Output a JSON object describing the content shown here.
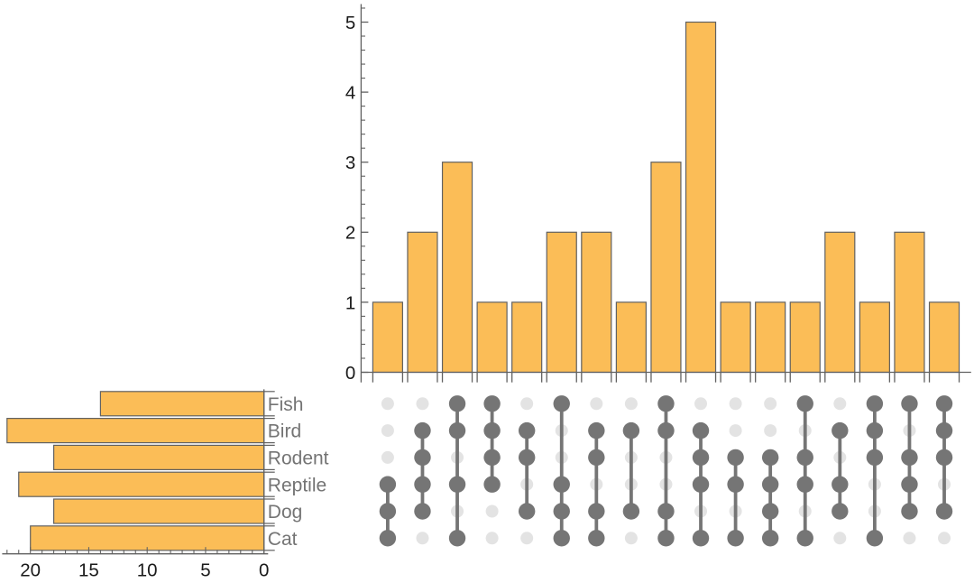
{
  "figure": {
    "kind": "upset-plot",
    "background": "#ffffff"
  },
  "colors": {
    "bar_fill": "#fbbd57",
    "bar_edge": "#616161",
    "axis_line": "#616161",
    "tick_label": "#1a1a1a",
    "set_label": "#747474",
    "dot_active": "#757575",
    "dot_inactive": "#e3e3e3",
    "connector_line": "#757575"
  },
  "chart_data": {
    "type": "upset",
    "title": "",
    "sets": [
      {
        "name": "Fish",
        "size": 14
      },
      {
        "name": "Bird",
        "size": 22
      },
      {
        "name": "Rodent",
        "size": 18
      },
      {
        "name": "Reptile",
        "size": 21
      },
      {
        "name": "Dog",
        "size": 18
      },
      {
        "name": "Cat",
        "size": 20
      }
    ],
    "set_size_axis": {
      "tick_labels": [
        "20",
        "15",
        "10",
        "5",
        "0"
      ],
      "tick_values": [
        20,
        15,
        10,
        5,
        0
      ],
      "minor_step": 1,
      "range": [
        0,
        22.4
      ],
      "direction": "right-to-left"
    },
    "intersection_axis": {
      "tick_labels": [
        "0",
        "1",
        "2",
        "3",
        "4",
        "5"
      ],
      "tick_values": [
        0,
        1,
        2,
        3,
        4,
        5
      ],
      "minor_step": 0.2,
      "range": [
        0,
        5.26
      ]
    },
    "intersections": [
      {
        "members": [
          "Reptile",
          "Dog",
          "Cat"
        ],
        "size": 1
      },
      {
        "members": [
          "Bird",
          "Rodent",
          "Reptile",
          "Dog"
        ],
        "size": 2
      },
      {
        "members": [
          "Fish",
          "Bird",
          "Reptile",
          "Cat"
        ],
        "size": 3
      },
      {
        "members": [
          "Fish",
          "Bird",
          "Rodent",
          "Reptile"
        ],
        "size": 1
      },
      {
        "members": [
          "Bird",
          "Rodent",
          "Dog"
        ],
        "size": 1
      },
      {
        "members": [
          "Fish",
          "Reptile",
          "Dog",
          "Cat"
        ],
        "size": 2
      },
      {
        "members": [
          "Bird",
          "Rodent",
          "Dog",
          "Cat"
        ],
        "size": 2
      },
      {
        "members": [
          "Bird",
          "Dog"
        ],
        "size": 1
      },
      {
        "members": [
          "Fish",
          "Bird",
          "Dog",
          "Cat"
        ],
        "size": 3
      },
      {
        "members": [
          "Bird",
          "Rodent",
          "Reptile",
          "Cat"
        ],
        "size": 5
      },
      {
        "members": [
          "Rodent",
          "Reptile",
          "Cat"
        ],
        "size": 1
      },
      {
        "members": [
          "Rodent",
          "Reptile",
          "Dog",
          "Cat"
        ],
        "size": 1
      },
      {
        "members": [
          "Fish",
          "Rodent",
          "Reptile",
          "Cat"
        ],
        "size": 1
      },
      {
        "members": [
          "Bird",
          "Reptile",
          "Dog"
        ],
        "size": 2
      },
      {
        "members": [
          "Fish",
          "Bird",
          "Rodent",
          "Cat"
        ],
        "size": 1
      },
      {
        "members": [
          "Fish",
          "Rodent",
          "Reptile",
          "Dog"
        ],
        "size": 2
      },
      {
        "members": [
          "Fish",
          "Bird",
          "Rodent",
          "Dog"
        ],
        "size": 1
      }
    ]
  }
}
